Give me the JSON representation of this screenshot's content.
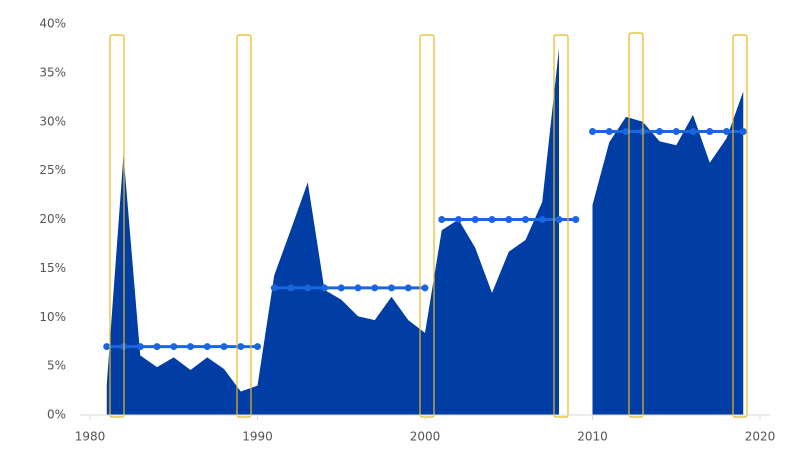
{
  "chart_data": {
    "type": "area",
    "x": [
      1981,
      1982,
      1983,
      1984,
      1985,
      1986,
      1987,
      1988,
      1989,
      1990,
      1991,
      1992,
      1993,
      1994,
      1995,
      1996,
      1997,
      1998,
      1999,
      2000,
      2001,
      2002,
      2003,
      2004,
      2005,
      2006,
      2007,
      2008,
      2009,
      2010,
      2011,
      2012,
      2013,
      2014,
      2015,
      2016,
      2017,
      2018,
      2019
    ],
    "values": [
      3.1,
      26.6,
      6.1,
      4.9,
      5.9,
      4.6,
      5.9,
      4.7,
      2.4,
      3.0,
      14.3,
      19.0,
      23.8,
      12.8,
      11.8,
      10.1,
      9.7,
      12.1,
      9.7,
      8.4,
      18.9,
      20.0,
      17.1,
      12.5,
      16.7,
      17.9,
      21.8,
      37.5,
      null,
      21.5,
      27.9,
      30.5,
      30.0,
      28.0,
      27.6,
      30.7,
      25.8,
      28.3,
      33.1
    ],
    "color": "#003da5",
    "averages": [
      {
        "years": [
          1981,
          1982,
          1983,
          1984,
          1985,
          1986,
          1987,
          1988,
          1989,
          1990
        ],
        "value": 7
      },
      {
        "years": [
          1991,
          1992,
          1993,
          1994,
          1995,
          1996,
          1997,
          1998,
          1999,
          2000
        ],
        "value": 13
      },
      {
        "years": [
          2001,
          2002,
          2003,
          2004,
          2005,
          2006,
          2007,
          2008,
          2009
        ],
        "value": 20
      },
      {
        "years": [
          2010,
          2011,
          2012,
          2013,
          2014,
          2015,
          2016,
          2017,
          2018,
          2019
        ],
        "value": 29
      }
    ],
    "average_color": "#1a66e0",
    "xlim": [
      1980,
      2020
    ],
    "xticks": [
      1980,
      1990,
      2000,
      2010,
      2020
    ],
    "ylim": [
      0,
      40
    ],
    "yticks": [
      {
        "value": 0,
        "label": "0%"
      },
      {
        "value": 5,
        "label": "5%"
      },
      {
        "value": 10,
        "label": "10%"
      },
      {
        "value": 15,
        "label": "15%"
      },
      {
        "value": 20,
        "label": "20%"
      },
      {
        "value": 25,
        "label": "25%"
      },
      {
        "value": 30,
        "label": "30%"
      },
      {
        "value": 35,
        "label": "35%"
      },
      {
        "value": 40,
        "label": "40%"
      }
    ]
  }
}
